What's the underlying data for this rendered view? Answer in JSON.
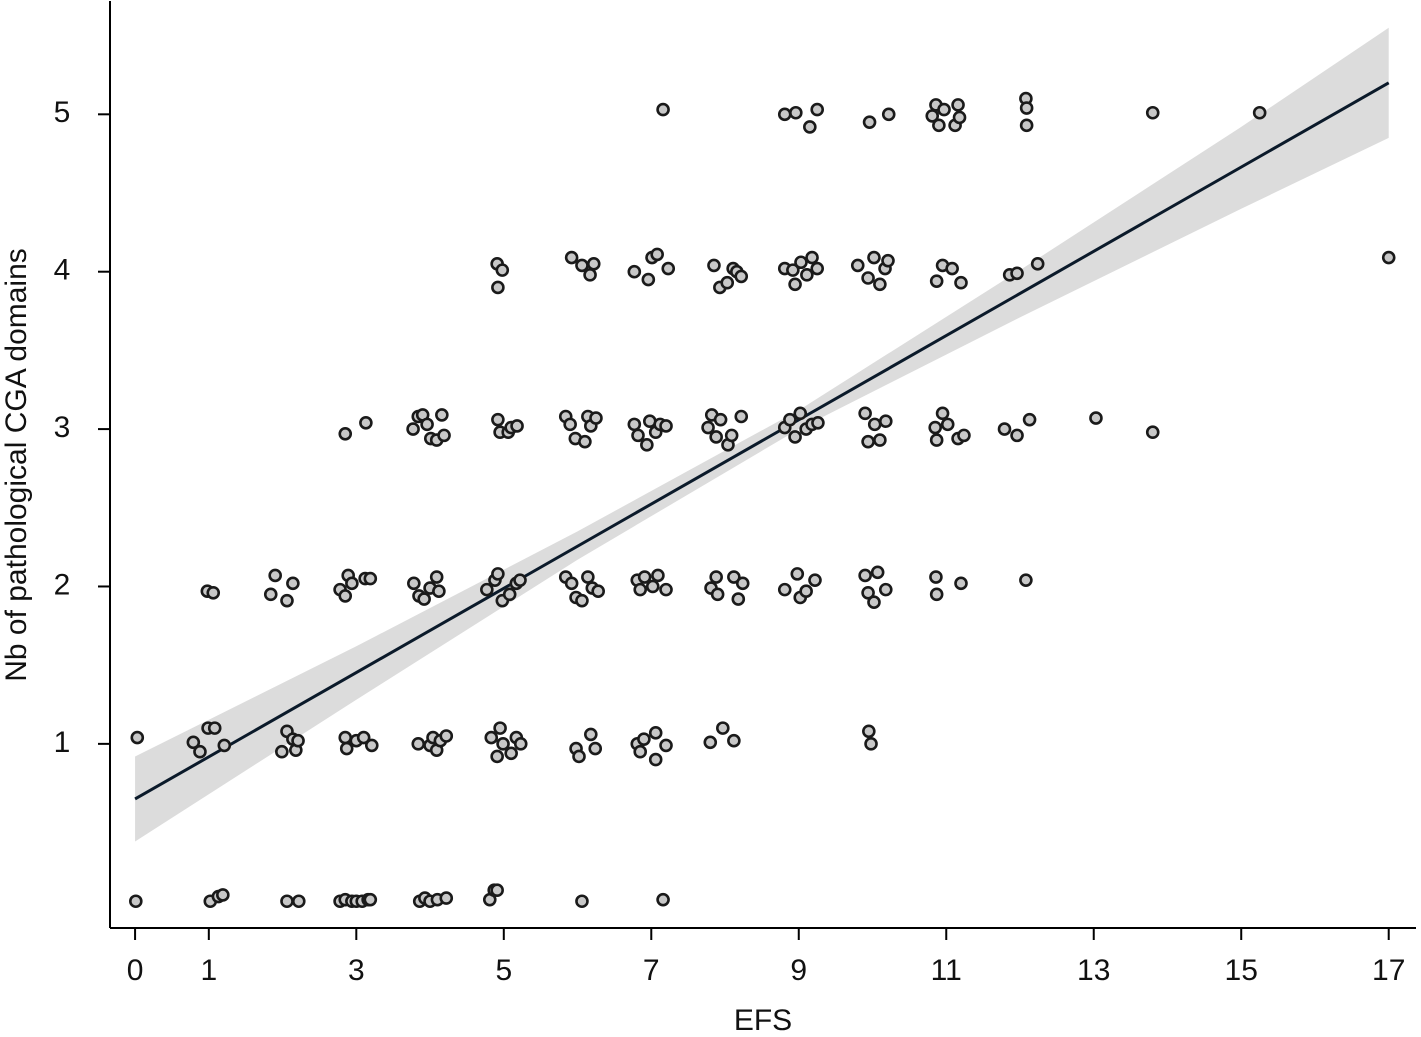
{
  "chart_data": {
    "type": "scatter",
    "x_label": "EFS",
    "y_label": "Nb of pathological CGA domains",
    "xlim": [
      -0.34,
      17.37
    ],
    "ylim": [
      -0.17,
      5.72
    ],
    "xticks": [
      0,
      1,
      3,
      5,
      7,
      9,
      11,
      13,
      15,
      17
    ],
    "yticks": [
      1,
      2,
      3,
      4,
      5
    ],
    "marker_color": "#c8c8c8",
    "line_color": "#0b1a2a",
    "band_color": "#dcdcdc",
    "fit": {
      "x": [
        0,
        17
      ],
      "y": [
        0.65,
        5.2
      ]
    },
    "ci": {
      "x": [
        0,
        3,
        6,
        9,
        12,
        15,
        17
      ],
      "lower": [
        0.38,
        1.28,
        2.17,
        3.0,
        3.71,
        4.4,
        4.85
      ],
      "upper": [
        0.92,
        1.62,
        2.35,
        3.12,
        4.01,
        4.92,
        5.55
      ]
    },
    "x": [
      0.01,
      1.02,
      1.13,
      1.19,
      2.06,
      2.22,
      2.78,
      2.85,
      2.94,
      3.0,
      3.08,
      3.16,
      3.19,
      3.86,
      3.93,
      4.0,
      4.1,
      4.22,
      4.81,
      4.87,
      4.91,
      6.06,
      7.16,
      0.03,
      0.79,
      0.88,
      0.99,
      1.08,
      1.21,
      1.99,
      2.06,
      2.14,
      2.18,
      2.21,
      2.85,
      2.87,
      3.0,
      3.1,
      3.21,
      3.84,
      4.0,
      4.04,
      4.09,
      4.14,
      4.22,
      4.83,
      4.91,
      4.95,
      4.99,
      5.1,
      5.17,
      5.23,
      5.98,
      6.02,
      6.18,
      6.24,
      6.81,
      6.85,
      6.9,
      7.06,
      7.06,
      7.2,
      7.8,
      7.97,
      8.12,
      9.95,
      9.98,
      0.98,
      1.06,
      1.9,
      1.84,
      2.06,
      2.14,
      2.78,
      2.85,
      2.89,
      2.94,
      3.12,
      3.19,
      3.78,
      3.85,
      3.92,
      4.0,
      4.09,
      4.12,
      4.77,
      4.88,
      4.92,
      4.98,
      5.08,
      5.17,
      5.22,
      5.84,
      5.92,
      5.98,
      6.06,
      6.14,
      6.2,
      6.28,
      6.81,
      6.85,
      6.91,
      7.02,
      7.09,
      7.2,
      7.81,
      7.88,
      7.9,
      8.12,
      8.18,
      8.24,
      8.81,
      8.98,
      9.02,
      9.1,
      9.22,
      9.9,
      9.94,
      10.02,
      10.07,
      10.18,
      10.86,
      10.87,
      11.2,
      12.08,
      2.85,
      3.13,
      3.77,
      3.84,
      3.9,
      3.96,
      4.01,
      4.09,
      4.16,
      4.19,
      4.92,
      4.95,
      5.06,
      5.1,
      5.18,
      5.84,
      5.9,
      5.97,
      6.1,
      6.14,
      6.18,
      6.25,
      6.77,
      6.82,
      6.94,
      6.98,
      7.06,
      7.12,
      7.2,
      7.77,
      7.82,
      7.88,
      7.94,
      8.04,
      8.09,
      8.22,
      8.81,
      8.88,
      8.95,
      9.02,
      9.1,
      9.18,
      9.26,
      9.9,
      9.94,
      10.03,
      10.1,
      10.18,
      10.85,
      10.87,
      10.95,
      11.02,
      11.16,
      11.24,
      11.79,
      11.96,
      12.13,
      13.03,
      13.8,
      4.91,
      4.98,
      4.92,
      5.92,
      6.06,
      6.17,
      6.22,
      6.77,
      6.96,
      7.01,
      7.08,
      7.23,
      7.85,
      7.93,
      8.03,
      8.11,
      8.16,
      8.22,
      8.81,
      8.92,
      8.95,
      9.03,
      9.11,
      9.18,
      9.25,
      9.8,
      9.94,
      10.02,
      10.1,
      10.17,
      10.21,
      10.87,
      10.95,
      11.08,
      11.2,
      11.86,
      11.96,
      12.24,
      17.0,
      7.16,
      8.81,
      8.96,
      9.15,
      9.25,
      9.96,
      10.22,
      10.81,
      10.86,
      10.9,
      10.97,
      11.12,
      11.16,
      11.18,
      12.08,
      12.09,
      12.09,
      13.8,
      15.25
    ],
    "y": [
      0.0,
      0.0,
      0.03,
      0.04,
      0.0,
      0.0,
      0.0,
      0.01,
      0.0,
      0.0,
      0.0,
      0.01,
      0.01,
      0.0,
      0.02,
      0.0,
      0.01,
      0.02,
      0.01,
      0.07,
      0.07,
      0.0,
      0.01,
      1.04,
      1.01,
      0.95,
      1.1,
      1.1,
      0.99,
      0.95,
      1.08,
      1.03,
      0.96,
      1.02,
      1.04,
      0.97,
      1.02,
      1.04,
      0.99,
      1.0,
      0.99,
      1.04,
      0.96,
      1.02,
      1.05,
      1.04,
      0.92,
      1.1,
      1.0,
      0.94,
      1.04,
      1.0,
      0.97,
      0.92,
      1.06,
      0.97,
      1.0,
      0.95,
      1.03,
      1.07,
      0.9,
      0.99,
      1.01,
      1.1,
      1.02,
      1.08,
      1.0,
      1.97,
      1.96,
      2.07,
      1.95,
      1.91,
      2.02,
      1.98,
      1.94,
      2.07,
      2.02,
      2.05,
      2.05,
      2.02,
      1.94,
      1.92,
      1.99,
      2.06,
      1.97,
      1.98,
      2.04,
      2.08,
      1.91,
      1.95,
      2.02,
      2.04,
      2.06,
      2.02,
      1.93,
      1.91,
      2.06,
      1.99,
      1.97,
      2.04,
      1.98,
      2.06,
      2.0,
      2.07,
      1.98,
      1.99,
      2.06,
      1.95,
      2.06,
      1.92,
      2.02,
      1.98,
      2.08,
      1.93,
      1.97,
      2.04,
      2.07,
      1.96,
      1.9,
      2.09,
      1.98,
      2.06,
      1.95,
      2.02,
      2.04,
      2.97,
      3.04,
      3.0,
      3.08,
      3.09,
      3.03,
      2.94,
      2.93,
      3.09,
      2.96,
      3.06,
      2.98,
      2.98,
      3.01,
      3.02,
      3.08,
      3.03,
      2.94,
      2.92,
      3.08,
      3.02,
      3.07,
      3.03,
      2.96,
      2.9,
      3.05,
      2.98,
      3.03,
      3.02,
      3.01,
      3.09,
      2.95,
      3.06,
      2.9,
      2.96,
      3.08,
      3.01,
      3.06,
      2.95,
      3.1,
      3.0,
      3.03,
      3.04,
      3.1,
      2.92,
      3.03,
      2.93,
      3.05,
      3.01,
      2.93,
      3.1,
      3.03,
      2.94,
      2.96,
      3.0,
      2.96,
      3.06,
      3.07,
      2.98,
      4.05,
      4.01,
      3.9,
      4.09,
      4.04,
      3.98,
      4.05,
      4.0,
      3.95,
      4.09,
      4.11,
      4.02,
      4.04,
      3.9,
      3.93,
      4.02,
      4.0,
      3.97,
      4.02,
      4.01,
      3.92,
      4.06,
      3.98,
      4.09,
      4.02,
      4.04,
      3.96,
      4.09,
      3.92,
      4.02,
      4.07,
      3.94,
      4.04,
      4.02,
      3.93,
      3.98,
      3.99,
      4.05,
      4.09,
      5.03,
      5.0,
      5.01,
      4.92,
      5.03,
      4.95,
      5.0,
      4.99,
      5.06,
      4.93,
      5.03,
      4.93,
      5.06,
      4.98,
      5.1,
      5.04,
      4.93,
      5.01,
      5.01
    ]
  }
}
